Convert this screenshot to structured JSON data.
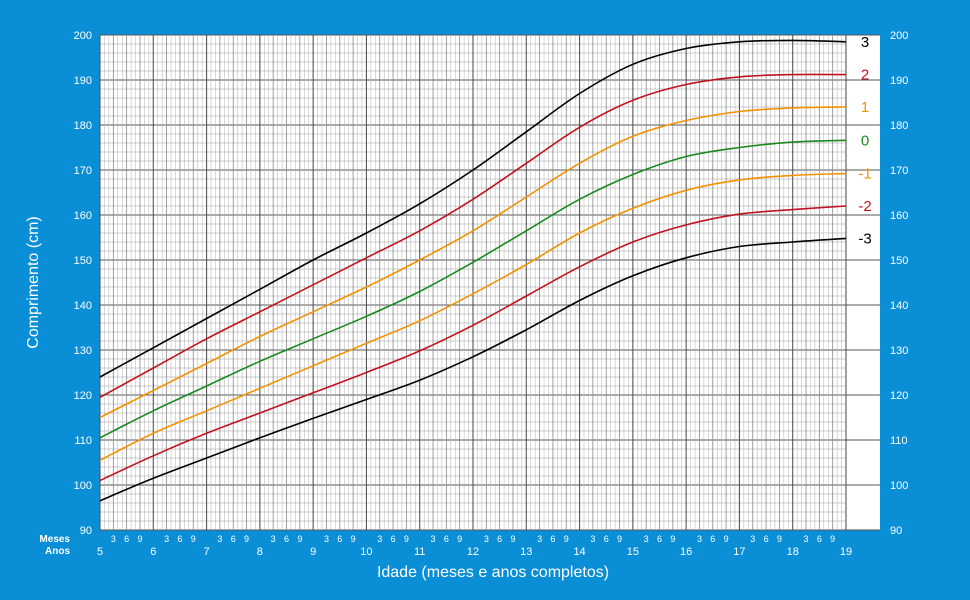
{
  "chart_data": {
    "type": "line",
    "ylabel": "Comprimento (cm)",
    "xlabel": "Idade (meses e anos completos)",
    "row_label_months": "Meses",
    "row_label_years": "Anos",
    "xlim": [
      5,
      19
    ],
    "ylim": [
      90,
      200
    ],
    "y_ticks": [
      90,
      100,
      110,
      120,
      130,
      140,
      150,
      160,
      170,
      180,
      190,
      200
    ],
    "x_year_ticks": [
      "5",
      "6",
      "7",
      "8",
      "9",
      "10",
      "11",
      "12",
      "13",
      "14",
      "15",
      "16",
      "17",
      "18",
      "19"
    ],
    "month_ticks": [
      "3",
      "6",
      "9"
    ],
    "grid": true,
    "colors": {
      "background": "#0a8fd6",
      "plot": "#ffffff",
      "grid": "#7a7a7a",
      "sd3": "#000000",
      "sd2": "#c1121f",
      "sd1": "#f39200",
      "sd0": "#1a8a1f"
    },
    "series": [
      {
        "name": "3",
        "color": "#000000",
        "x": [
          5,
          6,
          7,
          8,
          9,
          10,
          11,
          12,
          13,
          14,
          15,
          16,
          17,
          18,
          19
        ],
        "values": [
          124,
          130.5,
          137,
          143.5,
          150,
          156,
          162.5,
          170,
          178.5,
          187,
          193.5,
          197,
          198.5,
          198.8,
          198.5
        ]
      },
      {
        "name": "2",
        "color": "#c1121f",
        "x": [
          5,
          6,
          7,
          8,
          9,
          10,
          11,
          12,
          13,
          14,
          15,
          16,
          17,
          18,
          19
        ],
        "values": [
          119.5,
          126,
          132.5,
          138.5,
          144.5,
          150.5,
          156.5,
          163.5,
          171.5,
          179.5,
          185.5,
          189,
          190.7,
          191.2,
          191.2
        ]
      },
      {
        "name": "1",
        "color": "#f39200",
        "x": [
          5,
          6,
          7,
          8,
          9,
          10,
          11,
          12,
          13,
          14,
          15,
          16,
          17,
          18,
          19
        ],
        "values": [
          115,
          121,
          127,
          133,
          138.5,
          144,
          150,
          156.5,
          164,
          171.5,
          177.5,
          181,
          183,
          183.8,
          184
        ]
      },
      {
        "name": "0",
        "color": "#1a8a1f",
        "x": [
          5,
          6,
          7,
          8,
          9,
          10,
          11,
          12,
          13,
          14,
          15,
          16,
          17,
          18,
          19
        ],
        "values": [
          110.5,
          116.5,
          122,
          127.5,
          132.5,
          137.5,
          143,
          149.5,
          156.5,
          163.5,
          169,
          173,
          175,
          176.2,
          176.6
        ]
      },
      {
        "name": "-1",
        "color": "#f39200",
        "x": [
          5,
          6,
          7,
          8,
          9,
          10,
          11,
          12,
          13,
          14,
          15,
          16,
          17,
          18,
          19
        ],
        "values": [
          105.5,
          111.5,
          116.5,
          121.5,
          126.5,
          131.5,
          136.5,
          142.5,
          149,
          156,
          161.5,
          165.5,
          167.8,
          168.8,
          169.2
        ]
      },
      {
        "name": "-2",
        "color": "#c1121f",
        "x": [
          5,
          6,
          7,
          8,
          9,
          10,
          11,
          12,
          13,
          14,
          15,
          16,
          17,
          18,
          19
        ],
        "values": [
          101,
          106.5,
          111.5,
          116,
          120.5,
          125,
          129.8,
          135.5,
          142,
          148.5,
          154,
          157.8,
          160.2,
          161.2,
          162
        ]
      },
      {
        "name": "-3",
        "color": "#000000",
        "x": [
          5,
          6,
          7,
          8,
          9,
          10,
          11,
          12,
          13,
          14,
          15,
          16,
          17,
          18,
          19
        ],
        "values": [
          96.5,
          101.5,
          106,
          110.5,
          114.8,
          119,
          123.3,
          128.5,
          134.5,
          141,
          146.5,
          150.5,
          153,
          154,
          154.8
        ]
      }
    ]
  }
}
